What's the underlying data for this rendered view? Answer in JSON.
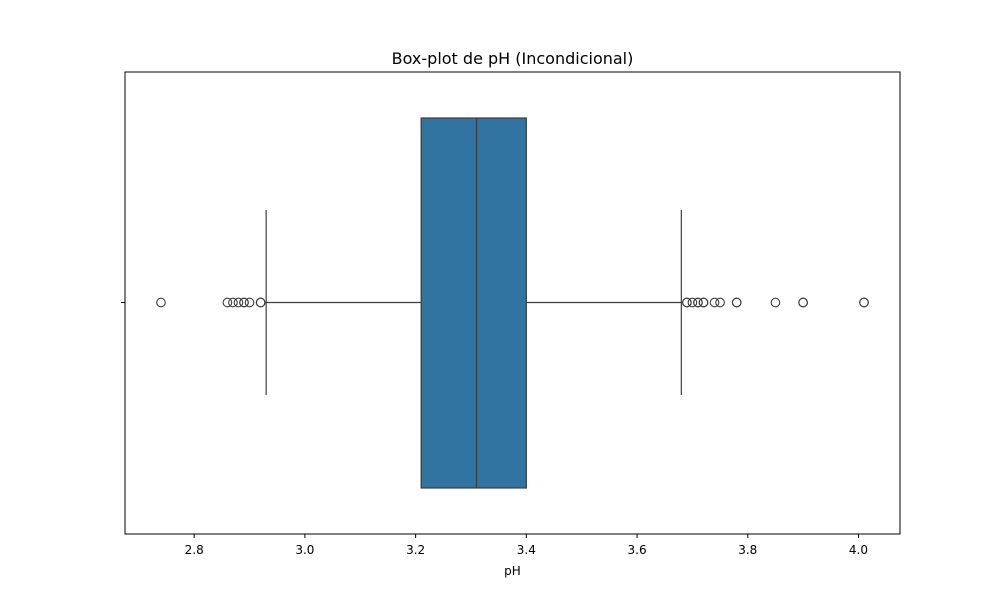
{
  "chart_data": {
    "type": "boxplot",
    "orientation": "horizontal",
    "title": "Box-plot de pH (Incondicional)",
    "xlabel": "pH",
    "ylabel": "",
    "xlim": [
      2.675,
      4.075
    ],
    "xticks": [
      2.8,
      3.0,
      3.2,
      3.4,
      3.6,
      3.8,
      4.0
    ],
    "xtick_labels": [
      "2.8",
      "3.0",
      "3.2",
      "3.4",
      "3.6",
      "3.8",
      "4.0"
    ],
    "grid": false,
    "box": {
      "whisker_low": 2.93,
      "q1": 3.21,
      "median": 3.31,
      "q3": 3.4,
      "whisker_high": 3.68,
      "fill_color": "#3274a1",
      "line_color": "#3d3d3d"
    },
    "outliers": [
      2.74,
      2.86,
      2.87,
      2.88,
      2.89,
      2.89,
      2.9,
      2.92,
      2.92,
      3.69,
      3.69,
      3.7,
      3.71,
      3.71,
      3.72,
      3.72,
      3.74,
      3.75,
      3.78,
      3.78,
      3.85,
      3.9,
      3.9,
      4.01,
      4.01
    ]
  }
}
